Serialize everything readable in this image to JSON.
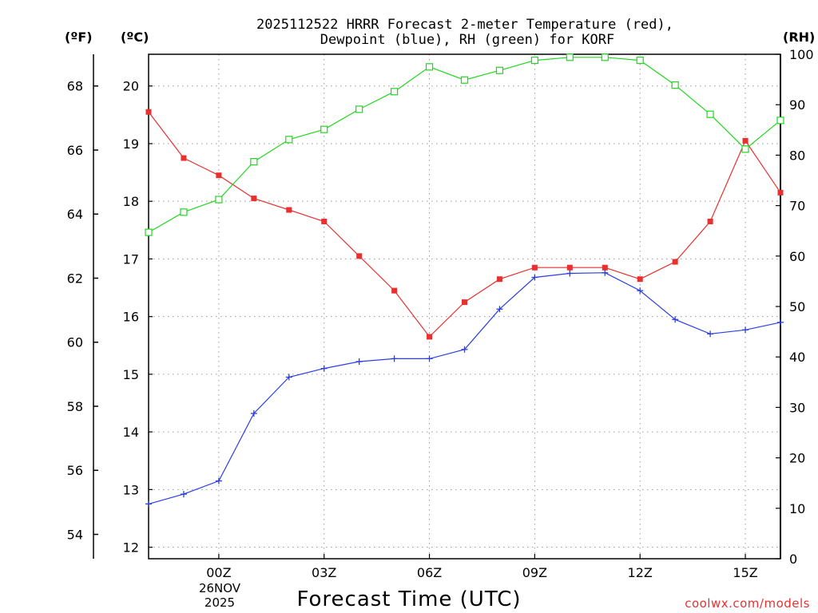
{
  "chart_data": {
    "type": "line",
    "title_line1": "2025112522 HRRR Forecast 2-meter Temperature (red),",
    "title_line2": "Dewpoint (blue), RH (green) for KORF",
    "xlabel": "Forecast Time (UTC)",
    "x_hours": [
      -2,
      -1,
      0,
      1,
      2,
      3,
      4,
      5,
      6,
      7,
      8,
      9,
      10,
      11,
      12,
      13,
      14,
      15,
      16
    ],
    "x_tick_hours": [
      0,
      3,
      6,
      9,
      12,
      15
    ],
    "x_tick_labels": [
      "00Z",
      "03Z",
      "06Z",
      "09Z",
      "12Z",
      "15Z"
    ],
    "date_label_day": "26NOV",
    "date_label_year": "2025",
    "axis_f": {
      "label": "(ºF)",
      "ticks": [
        "54",
        "56",
        "58",
        "60",
        "62",
        "64",
        "66",
        "68"
      ]
    },
    "axis_c": {
      "label": "(ºC)",
      "range": [
        11.8,
        20.55
      ],
      "ticks": [
        "12",
        "13",
        "14",
        "15",
        "16",
        "17",
        "18",
        "19",
        "20"
      ]
    },
    "axis_rh": {
      "label": "(RH)",
      "range": [
        0,
        100
      ],
      "ticks": [
        "0",
        "10",
        "20",
        "30",
        "40",
        "50",
        "60",
        "70",
        "80",
        "90",
        "100"
      ]
    },
    "series": [
      {
        "name": "Temperature",
        "unit": "C",
        "color": "#e8312f",
        "marker": "filled-square",
        "values": [
          19.55,
          18.75,
          18.45,
          18.05,
          17.85,
          17.65,
          17.05,
          16.45,
          15.65,
          16.25,
          16.65,
          16.85,
          16.85,
          16.85,
          16.65,
          16.95,
          17.65,
          19.05,
          18.15
        ]
      },
      {
        "name": "Dewpoint",
        "unit": "C",
        "color": "#2a3fe6",
        "marker": "plus",
        "values": [
          12.75,
          12.92,
          13.15,
          14.32,
          14.95,
          15.1,
          15.22,
          15.27,
          15.27,
          15.43,
          16.13,
          16.68,
          16.75,
          16.76,
          16.45,
          15.95,
          15.7,
          15.77,
          15.9
        ]
      },
      {
        "name": "RH",
        "unit": "%",
        "color": "#1fd81f",
        "marker": "open-square",
        "values": [
          64.7,
          68.7,
          71.2,
          78.7,
          83.1,
          85.1,
          89.1,
          92.6,
          97.5,
          94.9,
          96.8,
          98.8,
          99.4,
          99.4,
          98.8,
          93.9,
          88.1,
          81.2,
          86.9
        ]
      }
    ],
    "grid": "dotted"
  },
  "credit": "coolwx.com/models",
  "colors": {
    "temperature": "#e8312f",
    "dewpoint": "#2a3fe6",
    "rh": "#1fd81f",
    "credit": "#e8312f"
  }
}
